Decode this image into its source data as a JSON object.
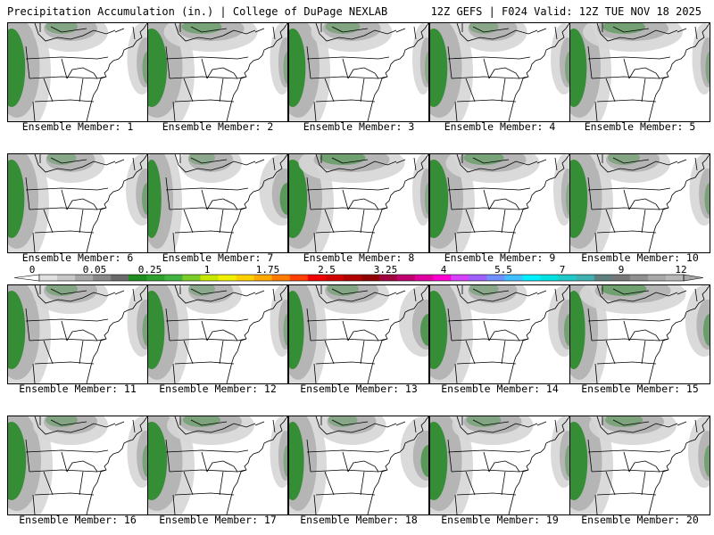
{
  "header": {
    "left": "Precipitation Accumulation (in.) | College of DuPage NEXLAB",
    "right": "12Z GEFS | F024 Valid: 12Z TUE NOV 18 2025"
  },
  "caption_prefix": "Ensemble Member: ",
  "members": [
    {
      "label": "Ensemble Member: 1",
      "west": 0.85,
      "north": 0.6,
      "east": 0.55
    },
    {
      "label": "Ensemble Member: 2",
      "west": 0.95,
      "north": 0.75,
      "east": 0.45
    },
    {
      "label": "Ensemble Member: 3",
      "west": 0.8,
      "north": 0.65,
      "east": 0.4
    },
    {
      "label": "Ensemble Member: 4",
      "west": 0.85,
      "north": 0.55,
      "east": 0.5
    },
    {
      "label": "Ensemble Member: 5",
      "west": 0.8,
      "north": 0.8,
      "east": 0.45
    },
    {
      "label": "Ensemble Member: 6",
      "west": 0.8,
      "north": 0.55,
      "east": 0.6
    },
    {
      "label": "Ensemble Member: 7",
      "west": 0.6,
      "north": 0.5,
      "east": 0.85
    },
    {
      "label": "Ensemble Member: 8",
      "west": 0.9,
      "north": 0.85,
      "east": 0.4
    },
    {
      "label": "Ensemble Member: 9",
      "west": 0.9,
      "north": 0.75,
      "east": 0.4
    },
    {
      "label": "Ensemble Member: 10",
      "west": 0.85,
      "north": 0.6,
      "east": 0.55
    },
    {
      "label": "Ensemble Member: 11",
      "west": 0.85,
      "north": 0.6,
      "east": 0.55
    },
    {
      "label": "Ensemble Member: 12",
      "west": 0.8,
      "north": 0.5,
      "east": 0.45
    },
    {
      "label": "Ensemble Member: 13",
      "west": 0.7,
      "north": 0.6,
      "east": 0.9
    },
    {
      "label": "Ensemble Member: 14",
      "west": 0.85,
      "north": 0.55,
      "east": 0.6
    },
    {
      "label": "Ensemble Member: 15",
      "west": 0.7,
      "north": 0.85,
      "east": 0.7
    },
    {
      "label": "Ensemble Member: 16",
      "west": 0.9,
      "north": 0.6,
      "east": 0.55
    },
    {
      "label": "Ensemble Member: 17",
      "west": 0.95,
      "north": 0.7,
      "east": 0.45
    },
    {
      "label": "Ensemble Member: 18",
      "west": 0.7,
      "north": 0.55,
      "east": 0.85
    },
    {
      "label": "Ensemble Member: 19",
      "west": 0.85,
      "north": 0.65,
      "east": 0.5
    },
    {
      "label": "Ensemble Member: 20",
      "west": 0.85,
      "north": 0.7,
      "east": 0.6
    }
  ],
  "colorbar": {
    "tick_labels": [
      "0",
      "0.05",
      "0.25",
      "1",
      "1.75",
      "2.5",
      "3.25",
      "4",
      "5.5",
      "7",
      "9",
      "12"
    ],
    "colors": [
      "#e0e0e0",
      "#c8c8c8",
      "#a8a8a8",
      "#888888",
      "#6a6a6a",
      "#1e8c1e",
      "#2ea02e",
      "#40b440",
      "#7acc28",
      "#c8e600",
      "#f0f000",
      "#ffd000",
      "#ffa800",
      "#ff7c00",
      "#ff4000",
      "#f00000",
      "#d00000",
      "#b00000",
      "#900000",
      "#a00040",
      "#c00070",
      "#e000a0",
      "#ff00d0",
      "#d840ff",
      "#a060ff",
      "#7090ff",
      "#40c0ff",
      "#00f0ff",
      "#00e0e0",
      "#20c8c8",
      "#40b0b0",
      "#608080",
      "#787878",
      "#909090",
      "#a8a8a8",
      "#b8b8b8"
    ]
  },
  "map_colors": {
    "land": "#ffffff",
    "outline": "#000000",
    "light_gray": "#d6d6d6",
    "mid_gray": "#b0b0b0",
    "dark_gray": "#8c8c8c",
    "green": "#2e8b2e"
  }
}
